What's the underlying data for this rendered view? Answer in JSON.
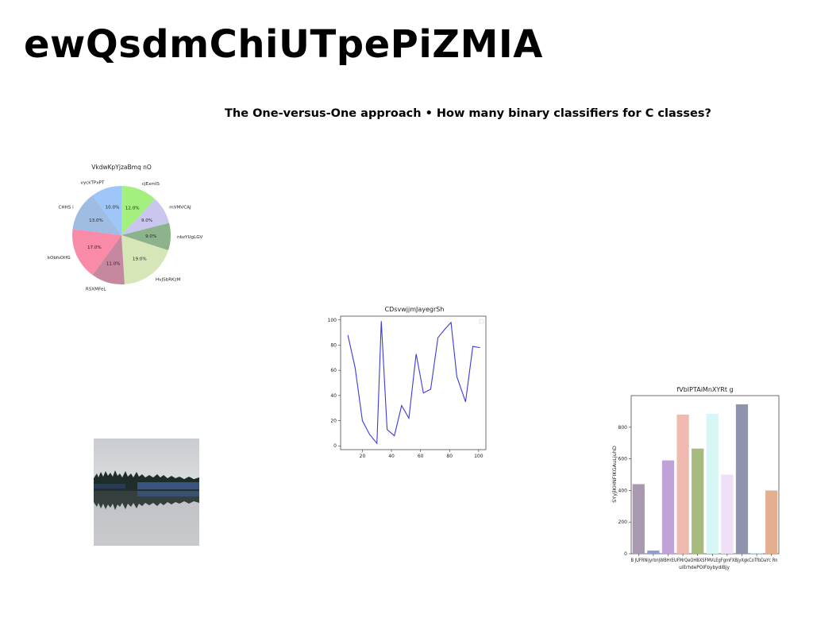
{
  "page": {
    "title": "ewQsdmChiUTpePiZMIA",
    "subtitle": "The One-versus-One approach • How many binary classifiers for C classes?"
  },
  "chart_data": [
    {
      "type": "pie",
      "title": "VkdwKpYjzaBmq nO",
      "labels": [
        "cjExmIS",
        "mVMVCAJ",
        "nbzYUgLGV",
        "HvJSbRKzM",
        "RSXMFeL",
        "kObfsOtfG",
        "CHHS i",
        "vyckTPxPT"
      ],
      "values": [
        12.0,
        9.0,
        9.0,
        19.0,
        11.0,
        17.0,
        13.0,
        10.0
      ],
      "percent_labels": [
        "12.0%",
        "9.0%",
        "9.0%",
        "19.0%",
        "11.0%",
        "17.0%",
        "13.0%",
        "10.0%"
      ],
      "colors": [
        "#a3f07f",
        "#c9c6f0",
        "#8db38d",
        "#d6e6b6",
        "#c6889f",
        "#f98aa8",
        "#9fbde3",
        "#9fc6f8"
      ],
      "start_angle": 90,
      "direction": "clockwise"
    },
    {
      "type": "line",
      "title": "CDsvwjjmJayegrSh",
      "x": [
        10,
        15,
        20,
        25,
        30,
        33,
        37,
        42,
        47,
        52,
        57,
        62,
        67,
        72,
        77,
        81,
        85,
        91,
        96,
        101
      ],
      "y": [
        88,
        62,
        20,
        9,
        2,
        99,
        13,
        8,
        32,
        22,
        73,
        42,
        45,
        86,
        93,
        98,
        55,
        35,
        79,
        78
      ],
      "xlim": [
        5,
        105
      ],
      "ylim": [
        -3,
        103
      ],
      "xticks": [
        "20",
        "40",
        "60",
        "80",
        "100"
      ],
      "xtick_values": [
        20,
        40,
        60,
        80,
        100
      ],
      "yticks": [
        "0",
        "20",
        "40",
        "60",
        "80",
        "100"
      ],
      "ytick_values": [
        0,
        20,
        40,
        60,
        80,
        100
      ],
      "color": "#3a3adf",
      "legend": "top-right"
    },
    {
      "type": "bar",
      "title": "fVbIPTAiMnXYRt g",
      "ylabel": "SYyjlKHNFIKGAuLjuhD",
      "xlabel": "uiErhdePOIFbybydiBjy",
      "categories": [
        "B JUFRN",
        "iyrbnjW",
        "BHrEUFM",
        "rQe",
        "OHBXSF",
        "MVL EgFg",
        "mFXBp",
        "XgkC",
        "oTfb",
        "DaYc Rn"
      ],
      "category_tick_text": "B JUFRNijyrbnjWBHrEUFMrQeOHBXSFMVLEgFgmFXBjyXgkCoTfbDaYc Rn",
      "values": [
        440,
        20,
        590,
        880,
        665,
        885,
        500,
        945,
        3,
        400
      ],
      "colors": [
        "#a898b0",
        "#8c9fcf",
        "#c0a2d8",
        "#efbbb0",
        "#a7bb7e",
        "#d9f6f6",
        "#eedff6",
        "#8e94ad",
        "#9fe0ea",
        "#e3af8e"
      ],
      "ylim": [
        0,
        1000
      ],
      "yticks": [
        "0",
        "200",
        "400",
        "600",
        "800"
      ],
      "ytick_values": [
        0,
        200,
        400,
        600,
        800
      ]
    }
  ],
  "photo": {
    "alt": ""
  }
}
